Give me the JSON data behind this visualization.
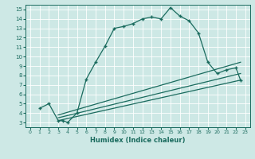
{
  "xlabel": "Humidex (Indice chaleur)",
  "bg_color": "#cde8e5",
  "line_color": "#1a6b5e",
  "grid_color": "#b0d8d4",
  "xlim": [
    -0.5,
    23.5
  ],
  "ylim": [
    2.5,
    15.5
  ],
  "xticks": [
    0,
    1,
    2,
    3,
    4,
    5,
    6,
    7,
    8,
    9,
    10,
    11,
    12,
    13,
    14,
    15,
    16,
    17,
    18,
    19,
    20,
    21,
    22,
    23
  ],
  "yticks": [
    3,
    4,
    5,
    6,
    7,
    8,
    9,
    10,
    11,
    12,
    13,
    14,
    15
  ],
  "main_line": {
    "x": [
      1,
      2,
      3,
      3.5,
      4,
      5,
      6,
      7,
      8,
      9,
      10,
      11,
      12,
      13,
      14,
      15,
      16,
      17,
      18,
      19,
      20,
      21,
      22,
      22.5
    ],
    "y": [
      4.5,
      5.0,
      3.2,
      3.2,
      3.0,
      4.0,
      7.6,
      9.4,
      11.1,
      13.0,
      13.2,
      13.5,
      14.0,
      14.2,
      14.0,
      15.2,
      14.3,
      13.8,
      12.5,
      9.4,
      8.2,
      8.6,
      8.8,
      7.5
    ]
  },
  "straight_lines": [
    {
      "x": [
        3,
        22.5
      ],
      "y": [
        3.8,
        9.4
      ]
    },
    {
      "x": [
        3,
        22.5
      ],
      "y": [
        3.5,
        8.2
      ]
    },
    {
      "x": [
        3,
        22.5
      ],
      "y": [
        3.2,
        7.5
      ]
    }
  ]
}
